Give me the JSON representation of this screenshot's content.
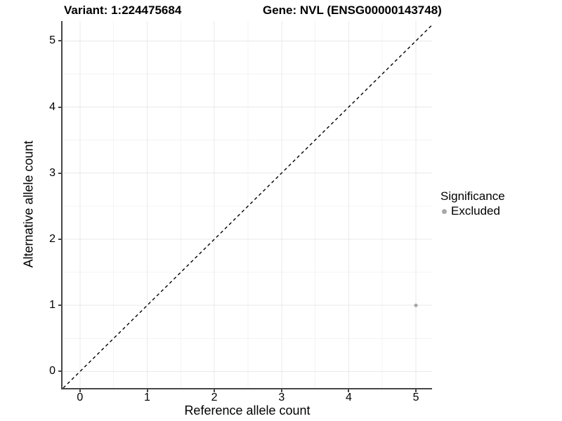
{
  "chart_data": {
    "type": "scatter",
    "title_left": "Variant: 1:224475684",
    "title_right": "Gene: NVL (ENSG00000143748)",
    "xlabel": "Reference allele count",
    "ylabel": "Alternative allele count",
    "x_ticks": [
      0,
      1,
      2,
      3,
      4,
      5
    ],
    "y_ticks": [
      0,
      1,
      2,
      3,
      4,
      5
    ],
    "xlim": [
      -0.26,
      5.24
    ],
    "ylim": [
      -0.25,
      5.3
    ],
    "grid": "major and minor gridlines, light gray on white panel",
    "series": [
      {
        "name": "Excluded",
        "color": "#a8a8a8",
        "point_radius": 2.6,
        "points": [
          {
            "x": 5,
            "y": 1
          }
        ]
      }
    ],
    "reference_line": {
      "equation": "y = x",
      "style": "dashed",
      "color": "#000000"
    },
    "legend": {
      "title": "Significance",
      "position": "right",
      "items": [
        {
          "label": "Excluded",
          "color": "#a8a8a8"
        }
      ]
    }
  },
  "colors": {
    "background": "#ffffff",
    "grid_major": "#e9e9e9",
    "grid_minor": "#f4f4f4",
    "axis_line": "#474747",
    "text": "#000000"
  }
}
